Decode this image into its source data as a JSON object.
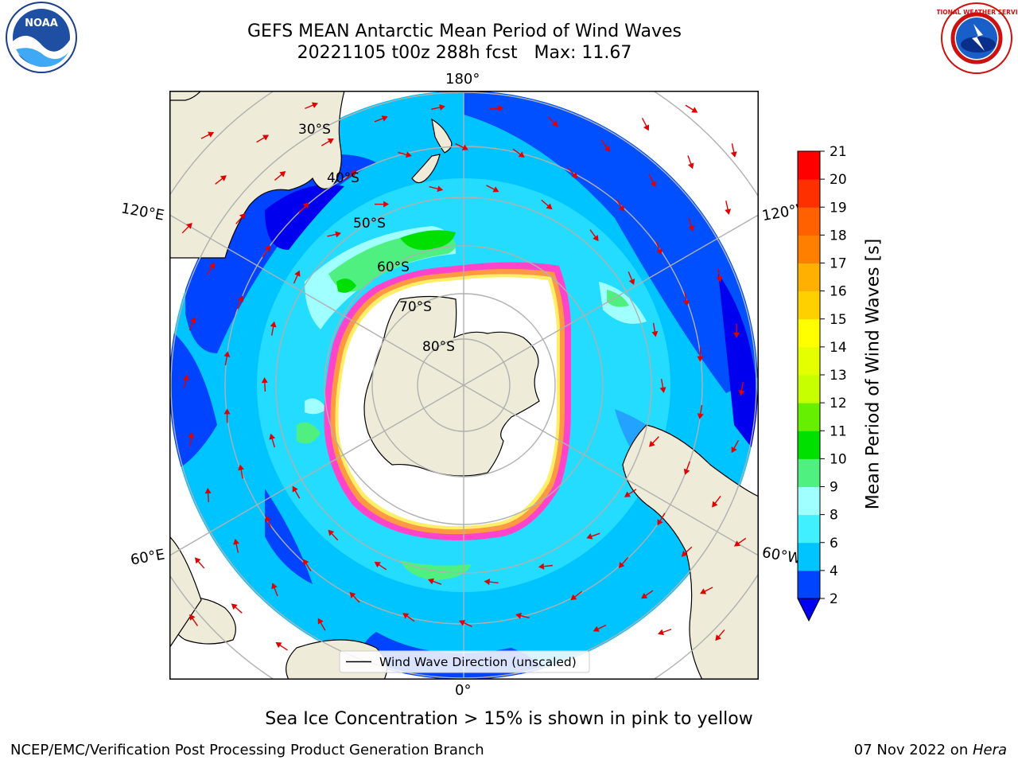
{
  "header": {
    "title_line1": "GEFS MEAN Antarctic Mean Period of Wind Waves",
    "title_line2": "20221105 t00z 288h fcst   Max: 11.67"
  },
  "logos": {
    "left": {
      "icon": "noaa-logo",
      "text": "NOAA"
    },
    "right": {
      "icon": "national-weather-service-logo",
      "text": "NATIONAL WEATHER SERVICE"
    }
  },
  "map": {
    "projection": "south-polar-stereographic",
    "lon_labels": {
      "top": "180°",
      "bottom": "0°",
      "left_upper": "120°E",
      "left_lower": "60°E",
      "right_upper": "120°W",
      "right_lower": "60°W"
    },
    "lat_labels": [
      "30°S",
      "40°S",
      "50°S",
      "60°S",
      "70°S",
      "80°S"
    ],
    "legend_label": "Wind Wave Direction (unscaled)",
    "colors": {
      "land": "#eeecd9",
      "coast": "#000000",
      "grid": "#b0b0b0",
      "arrow": "#e00000",
      "sea_ice": [
        "#ff44cc",
        "#ff9944",
        "#ffee66"
      ]
    }
  },
  "colorbar": {
    "label": "Mean Period of Wind Waves [s]",
    "ticks": [
      "2",
      "4",
      "6",
      "8",
      "9",
      "10",
      "11",
      "12",
      "13",
      "14",
      "15",
      "16",
      "17",
      "18",
      "19",
      "20",
      "21"
    ],
    "colors": [
      "#0044ff",
      "#00c4ff",
      "#40f0ff",
      "#a0ffff",
      "#50f080",
      "#00e000",
      "#66f000",
      "#c8ff00",
      "#e4ff00",
      "#ffff00",
      "#ffd000",
      "#ffb000",
      "#ff8000",
      "#ff6000",
      "#ff3000",
      "#ff0000"
    ],
    "extend_color": "#0000ee"
  },
  "subtitle": "Sea Ice Concentration > 15% is shown in pink to yellow",
  "footer": {
    "left": "NCEP/EMC/Verification Post Processing Product Generation Branch",
    "date": "07 Nov 2022 on ",
    "machine": "Hera"
  }
}
